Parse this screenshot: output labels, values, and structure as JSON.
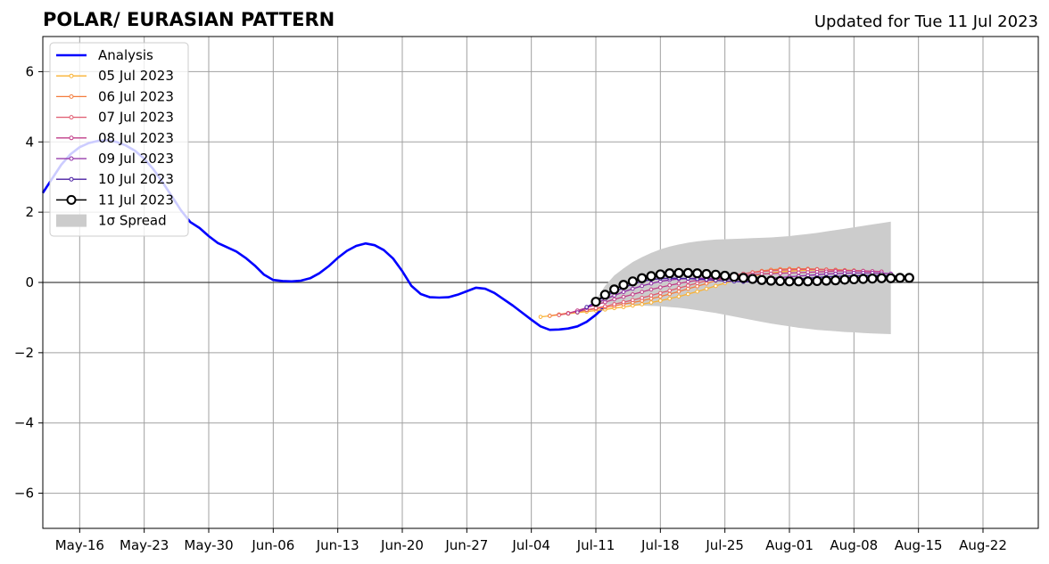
{
  "chart_data": {
    "type": "line",
    "title": "POLAR/ EURASIAN  PATTERN",
    "subtitle": "Updated for Tue 11 Jul 2023",
    "xlabel": "",
    "ylabel": "",
    "xlim": [
      "2023-05-12",
      "2023-08-28"
    ],
    "ylim": [
      -7,
      7
    ],
    "grid": true,
    "legend_position": "top-left",
    "x_ticks": [
      "May-16",
      "May-23",
      "May-30",
      "Jun-06",
      "Jun-13",
      "Jun-20",
      "Jun-27",
      "Jul-04",
      "Jul-11",
      "Jul-18",
      "Jul-25",
      "Aug-01",
      "Aug-08",
      "Aug-15",
      "Aug-22"
    ],
    "y_ticks": [
      "6",
      "4",
      "2",
      "0",
      "−2",
      "−4",
      "−6"
    ],
    "analysis": {
      "name": "Analysis",
      "color": "#0000ff",
      "start_date": "2023-05-12",
      "values": [
        2.55,
        2.95,
        3.35,
        3.65,
        3.85,
        3.97,
        4.03,
        4.05,
        4.0,
        3.9,
        3.75,
        3.52,
        3.22,
        2.85,
        2.45,
        2.05,
        1.72,
        1.55,
        1.32,
        1.12,
        1.0,
        0.88,
        0.7,
        0.48,
        0.22,
        0.07,
        0.04,
        0.03,
        0.05,
        0.12,
        0.26,
        0.46,
        0.7,
        0.9,
        1.04,
        1.11,
        1.06,
        0.92,
        0.68,
        0.32,
        -0.1,
        -0.33,
        -0.42,
        -0.43,
        -0.42,
        -0.35,
        -0.25,
        -0.15,
        -0.18,
        -0.3,
        -0.48,
        -0.66,
        -0.86,
        -1.06,
        -1.25,
        -1.35,
        -1.34,
        -1.31,
        -1.25,
        -1.12,
        -0.92,
        -0.68
      ]
    },
    "forecasts": [
      {
        "name": "05 Jul 2023",
        "color": "#f9b233",
        "start_date": "2023-07-05",
        "values": [
          -0.98,
          -0.95,
          -0.92,
          -0.89,
          -0.86,
          -0.83,
          -0.8,
          -0.77,
          -0.73,
          -0.7,
          -0.66,
          -0.62,
          -0.57,
          -0.52,
          -0.46,
          -0.4,
          -0.33,
          -0.26,
          -0.18,
          -0.1,
          -0.02,
          0.05,
          0.12,
          0.18,
          0.23,
          0.27,
          0.3,
          0.32,
          0.34,
          0.35,
          0.36,
          0.36,
          0.36,
          0.35,
          0.34
        ]
      },
      {
        "name": "06 Jul 2023",
        "color": "#f47c3c",
        "start_date": "2023-07-06",
        "values": [
          -0.95,
          -0.91,
          -0.87,
          -0.83,
          -0.79,
          -0.75,
          -0.71,
          -0.67,
          -0.62,
          -0.57,
          -0.52,
          -0.46,
          -0.4,
          -0.33,
          -0.26,
          -0.18,
          -0.11,
          -0.03,
          0.05,
          0.12,
          0.18,
          0.24,
          0.29,
          0.33,
          0.36,
          0.38,
          0.39,
          0.39,
          0.39,
          0.38,
          0.37,
          0.36,
          0.35,
          0.34,
          0.33
        ]
      },
      {
        "name": "07 Jul 2023",
        "color": "#e05a6f",
        "start_date": "2023-07-07",
        "values": [
          -0.93,
          -0.88,
          -0.83,
          -0.78,
          -0.73,
          -0.68,
          -0.62,
          -0.56,
          -0.5,
          -0.44,
          -0.37,
          -0.3,
          -0.23,
          -0.16,
          -0.09,
          -0.02,
          0.05,
          0.11,
          0.16,
          0.21,
          0.25,
          0.28,
          0.31,
          0.33,
          0.35,
          0.36,
          0.37,
          0.37,
          0.37,
          0.36,
          0.35,
          0.34,
          0.33,
          0.32,
          0.31
        ]
      },
      {
        "name": "08 Jul 2023",
        "color": "#c13d88",
        "start_date": "2023-07-08",
        "values": [
          -0.88,
          -0.8,
          -0.72,
          -0.64,
          -0.56,
          -0.48,
          -0.41,
          -0.34,
          -0.27,
          -0.2,
          -0.14,
          -0.08,
          -0.03,
          0.02,
          0.06,
          0.1,
          0.13,
          0.16,
          0.18,
          0.2,
          0.22,
          0.24,
          0.25,
          0.26,
          0.27,
          0.28,
          0.29,
          0.3,
          0.31,
          0.32,
          0.33,
          0.33,
          0.33,
          0.32,
          0.31
        ]
      },
      {
        "name": "09 Jul 2023",
        "color": "#8e2ba5",
        "start_date": "2023-07-09",
        "values": [
          -0.85,
          -0.72,
          -0.6,
          -0.48,
          -0.37,
          -0.27,
          -0.18,
          -0.1,
          -0.03,
          0.03,
          0.07,
          0.1,
          0.11,
          0.12,
          0.12,
          0.11,
          0.1,
          0.09,
          0.09,
          0.1,
          0.11,
          0.12,
          0.14,
          0.16,
          0.18,
          0.2,
          0.22,
          0.24,
          0.25,
          0.26,
          0.27,
          0.27,
          0.27,
          0.26,
          0.25
        ]
      },
      {
        "name": "10 Jul 2023",
        "color": "#4a1fa3",
        "start_date": "2023-07-10",
        "values": [
          -0.7,
          -0.55,
          -0.4,
          -0.27,
          -0.15,
          -0.05,
          0.03,
          0.08,
          0.11,
          0.12,
          0.12,
          0.11,
          0.1,
          0.08,
          0.06,
          0.04,
          0.03,
          0.02,
          0.02,
          0.03,
          0.04,
          0.06,
          0.08,
          0.1,
          0.12,
          0.14,
          0.16,
          0.17,
          0.18,
          0.19,
          0.2,
          0.2,
          0.2,
          0.19,
          0.18
        ]
      },
      {
        "name": "11 Jul 2023",
        "color": "#000000",
        "start_date": "2023-07-11",
        "values": [
          -0.55,
          -0.35,
          -0.2,
          -0.07,
          0.03,
          0.12,
          0.18,
          0.23,
          0.26,
          0.27,
          0.27,
          0.26,
          0.24,
          0.22,
          0.19,
          0.16,
          0.13,
          0.1,
          0.07,
          0.05,
          0.04,
          0.03,
          0.03,
          0.03,
          0.04,
          0.05,
          0.06,
          0.08,
          0.09,
          0.1,
          0.11,
          0.12,
          0.12,
          0.13,
          0.13
        ]
      }
    ],
    "spread": {
      "name": "1σ Spread",
      "color": "#cccccc",
      "start_date": "2023-07-11",
      "end_date": "2023-08-12",
      "upper": [
        [
          0,
          -0.5
        ],
        [
          1,
          -0.1
        ],
        [
          2,
          0.2
        ],
        [
          3,
          0.4
        ],
        [
          4,
          0.58
        ],
        [
          5,
          0.72
        ],
        [
          6,
          0.84
        ],
        [
          7,
          0.94
        ],
        [
          8,
          1.02
        ],
        [
          9,
          1.08
        ],
        [
          10,
          1.13
        ],
        [
          11,
          1.17
        ],
        [
          12,
          1.2
        ],
        [
          13,
          1.22
        ],
        [
          14,
          1.23
        ],
        [
          15,
          1.24
        ],
        [
          16,
          1.25
        ],
        [
          17,
          1.26
        ],
        [
          18,
          1.27
        ],
        [
          19,
          1.28
        ],
        [
          20,
          1.3
        ],
        [
          21,
          1.32
        ],
        [
          22,
          1.35
        ],
        [
          23,
          1.38
        ],
        [
          24,
          1.41
        ],
        [
          25,
          1.45
        ],
        [
          26,
          1.49
        ],
        [
          27,
          1.53
        ],
        [
          28,
          1.57
        ],
        [
          29,
          1.61
        ],
        [
          30,
          1.65
        ],
        [
          31,
          1.69
        ],
        [
          32,
          1.73
        ]
      ],
      "lower": [
        [
          0,
          -0.6
        ],
        [
          1,
          -0.62
        ],
        [
          2,
          -0.63
        ],
        [
          3,
          -0.64
        ],
        [
          4,
          -0.65
        ],
        [
          5,
          -0.66
        ],
        [
          6,
          -0.67
        ],
        [
          7,
          -0.68
        ],
        [
          8,
          -0.7
        ],
        [
          9,
          -0.72
        ],
        [
          10,
          -0.75
        ],
        [
          11,
          -0.79
        ],
        [
          12,
          -0.83
        ],
        [
          13,
          -0.87
        ],
        [
          14,
          -0.92
        ],
        [
          15,
          -0.97
        ],
        [
          16,
          -1.02
        ],
        [
          17,
          -1.07
        ],
        [
          18,
          -1.12
        ],
        [
          19,
          -1.17
        ],
        [
          20,
          -1.21
        ],
        [
          21,
          -1.25
        ],
        [
          22,
          -1.29
        ],
        [
          23,
          -1.32
        ],
        [
          24,
          -1.35
        ],
        [
          25,
          -1.37
        ],
        [
          26,
          -1.39
        ],
        [
          27,
          -1.41
        ],
        [
          28,
          -1.42
        ],
        [
          29,
          -1.44
        ],
        [
          30,
          -1.45
        ],
        [
          31,
          -1.46
        ],
        [
          32,
          -1.47
        ]
      ]
    }
  }
}
